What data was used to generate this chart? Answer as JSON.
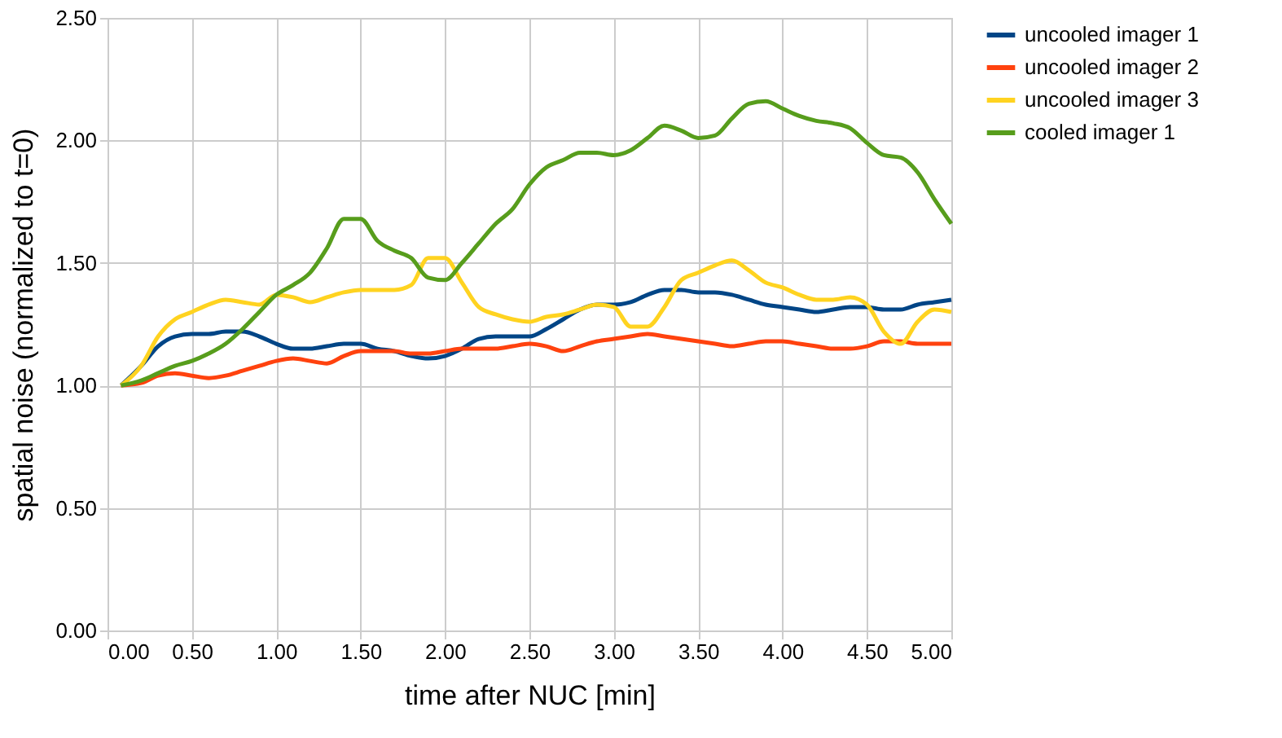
{
  "chart_data": {
    "type": "line",
    "xlabel": "time after NUC [min]",
    "ylabel": "spatial noise (normalized to t=0)",
    "x": [
      0.08,
      0.2,
      0.3,
      0.4,
      0.5,
      0.6,
      0.7,
      0.8,
      0.9,
      1.0,
      1.1,
      1.2,
      1.3,
      1.4,
      1.5,
      1.6,
      1.7,
      1.8,
      1.9,
      2.0,
      2.1,
      2.2,
      2.3,
      2.4,
      2.5,
      2.6,
      2.7,
      2.8,
      2.9,
      3.0,
      3.1,
      3.2,
      3.3,
      3.4,
      3.5,
      3.6,
      3.7,
      3.8,
      3.9,
      4.0,
      4.1,
      4.2,
      4.3,
      4.4,
      4.5,
      4.6,
      4.7,
      4.8,
      4.9,
      5.0
    ],
    "series": [
      {
        "name": "uncooled imager 1",
        "color": "#004586",
        "values": [
          1.0,
          1.08,
          1.16,
          1.2,
          1.21,
          1.21,
          1.22,
          1.22,
          1.2,
          1.17,
          1.15,
          1.15,
          1.16,
          1.17,
          1.17,
          1.15,
          1.14,
          1.12,
          1.11,
          1.12,
          1.15,
          1.19,
          1.2,
          1.2,
          1.2,
          1.23,
          1.27,
          1.31,
          1.33,
          1.33,
          1.34,
          1.37,
          1.39,
          1.39,
          1.38,
          1.38,
          1.37,
          1.35,
          1.33,
          1.32,
          1.31,
          1.3,
          1.31,
          1.32,
          1.32,
          1.31,
          1.31,
          1.33,
          1.34,
          1.35
        ]
      },
      {
        "name": "uncooled imager 2",
        "color": "#ff420e",
        "values": [
          1.0,
          1.01,
          1.04,
          1.05,
          1.04,
          1.03,
          1.04,
          1.06,
          1.08,
          1.1,
          1.11,
          1.1,
          1.09,
          1.12,
          1.14,
          1.14,
          1.14,
          1.13,
          1.13,
          1.14,
          1.15,
          1.15,
          1.15,
          1.16,
          1.17,
          1.16,
          1.14,
          1.16,
          1.18,
          1.19,
          1.2,
          1.21,
          1.2,
          1.19,
          1.18,
          1.17,
          1.16,
          1.17,
          1.18,
          1.18,
          1.17,
          1.16,
          1.15,
          1.15,
          1.16,
          1.18,
          1.18,
          1.17,
          1.17,
          1.17
        ]
      },
      {
        "name": "uncooled imager 3",
        "color": "#ffd320",
        "values": [
          1.0,
          1.08,
          1.2,
          1.27,
          1.3,
          1.33,
          1.35,
          1.34,
          1.33,
          1.37,
          1.36,
          1.34,
          1.36,
          1.38,
          1.39,
          1.39,
          1.39,
          1.41,
          1.52,
          1.52,
          1.42,
          1.32,
          1.29,
          1.27,
          1.26,
          1.28,
          1.29,
          1.31,
          1.33,
          1.32,
          1.24,
          1.24,
          1.32,
          1.43,
          1.46,
          1.49,
          1.51,
          1.47,
          1.42,
          1.4,
          1.37,
          1.35,
          1.35,
          1.36,
          1.33,
          1.22,
          1.17,
          1.26,
          1.31,
          1.3
        ]
      },
      {
        "name": "cooled imager 1",
        "color": "#579d1c",
        "values": [
          1.0,
          1.02,
          1.05,
          1.08,
          1.1,
          1.13,
          1.17,
          1.23,
          1.3,
          1.37,
          1.41,
          1.46,
          1.56,
          1.68,
          1.68,
          1.59,
          1.55,
          1.52,
          1.44,
          1.43,
          1.5,
          1.58,
          1.66,
          1.72,
          1.82,
          1.89,
          1.92,
          1.95,
          1.95,
          1.94,
          1.96,
          2.01,
          2.06,
          2.04,
          2.01,
          2.02,
          2.09,
          2.15,
          2.16,
          2.13,
          2.1,
          2.08,
          2.07,
          2.05,
          1.99,
          1.94,
          1.93,
          1.87,
          1.76,
          1.66
        ]
      }
    ],
    "xlim": [
      0,
      5
    ],
    "ylim": [
      0,
      2.5
    ],
    "xticks": [
      {
        "value": 0,
        "label": "0.00"
      },
      {
        "value": 0.5,
        "label": "0.50"
      },
      {
        "value": 1,
        "label": "1.00"
      },
      {
        "value": 1.5,
        "label": "1.50"
      },
      {
        "value": 2,
        "label": "2.00"
      },
      {
        "value": 2.5,
        "label": "2.50"
      },
      {
        "value": 3,
        "label": "3.00"
      },
      {
        "value": 3.5,
        "label": "3.50"
      },
      {
        "value": 4,
        "label": "4.00"
      },
      {
        "value": 4.5,
        "label": "4.50"
      },
      {
        "value": 5,
        "label": "5.00"
      }
    ],
    "yticks": [
      {
        "value": 0,
        "label": "0.00"
      },
      {
        "value": 0.5,
        "label": "0.50"
      },
      {
        "value": 1,
        "label": "1.00"
      },
      {
        "value": 1.5,
        "label": "1.50"
      },
      {
        "value": 2,
        "label": "2.00"
      },
      {
        "value": 2.5,
        "label": "2.50"
      }
    ],
    "grid": true,
    "legend": "right",
    "marker": "none",
    "line_style": "solid"
  }
}
